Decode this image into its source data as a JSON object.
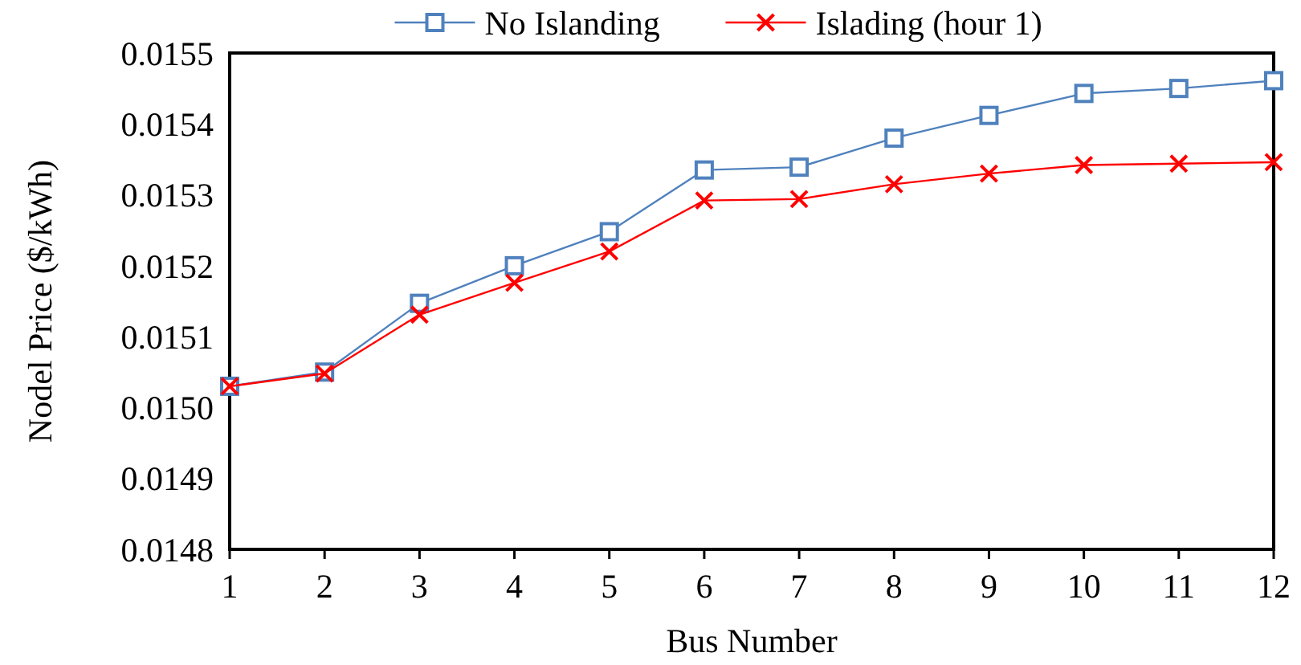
{
  "chart_data": {
    "type": "line",
    "xlabel": "Bus Number",
    "ylabel": "Nodel Price ($/kWh)",
    "x": [
      1,
      2,
      3,
      4,
      5,
      6,
      7,
      8,
      9,
      10,
      11,
      12
    ],
    "xlim": [
      1,
      12
    ],
    "xticks": [
      1,
      2,
      3,
      4,
      5,
      6,
      7,
      8,
      9,
      10,
      11,
      12
    ],
    "ylim": [
      0.0148,
      0.0155
    ],
    "yticks": [
      {
        "value": 0.0148,
        "label": "0.0148"
      },
      {
        "value": 0.0149,
        "label": "0.0149"
      },
      {
        "value": 0.015,
        "label": "0.0150"
      },
      {
        "value": 0.0151,
        "label": "0.0151"
      },
      {
        "value": 0.0152,
        "label": "0.0152"
      },
      {
        "value": 0.0153,
        "label": "0.0153"
      },
      {
        "value": 0.0154,
        "label": "0.0154"
      },
      {
        "value": 0.0155,
        "label": "0.0155"
      }
    ],
    "series": [
      {
        "name": "No Islanding",
        "color": "#4f81bd",
        "marker": "square",
        "values": [
          0.01503,
          0.01505,
          0.015147,
          0.0152,
          0.015248,
          0.015335,
          0.015339,
          0.01538,
          0.015412,
          0.015443,
          0.01545,
          0.015461
        ]
      },
      {
        "name": "Islading (hour 1)",
        "color": "#ff0000",
        "marker": "cross",
        "values": [
          0.01503,
          0.015048,
          0.015131,
          0.015176,
          0.01522,
          0.015292,
          0.015294,
          0.015315,
          0.01533,
          0.015342,
          0.015344,
          0.015346
        ]
      }
    ],
    "legend": "top",
    "grid": false,
    "line_style": "solid"
  }
}
